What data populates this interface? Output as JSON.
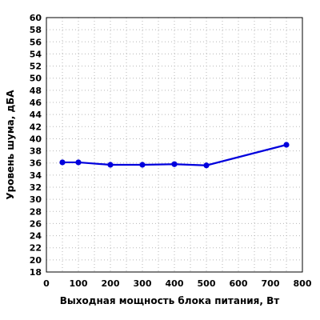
{
  "chart_data": {
    "type": "line",
    "title": "",
    "xlabel": "Выходная мощность блока питания, Вт",
    "ylabel": "Уровень шума, дБА",
    "xlim": [
      0,
      800
    ],
    "ylim": [
      18,
      60
    ],
    "x_ticks": [
      0,
      100,
      200,
      300,
      400,
      500,
      600,
      700,
      800
    ],
    "y_ticks": [
      18,
      20,
      22,
      24,
      26,
      28,
      30,
      32,
      34,
      36,
      38,
      40,
      42,
      44,
      46,
      48,
      50,
      52,
      54,
      56,
      58,
      60
    ],
    "grid": true,
    "x_minor_step": 50,
    "series": [
      {
        "color": "#0000dd",
        "x": [
          50,
          100,
          200,
          300,
          400,
          500,
          750
        ],
        "y": [
          36.1,
          36.1,
          35.7,
          35.7,
          35.8,
          35.6,
          39.0
        ]
      }
    ]
  }
}
